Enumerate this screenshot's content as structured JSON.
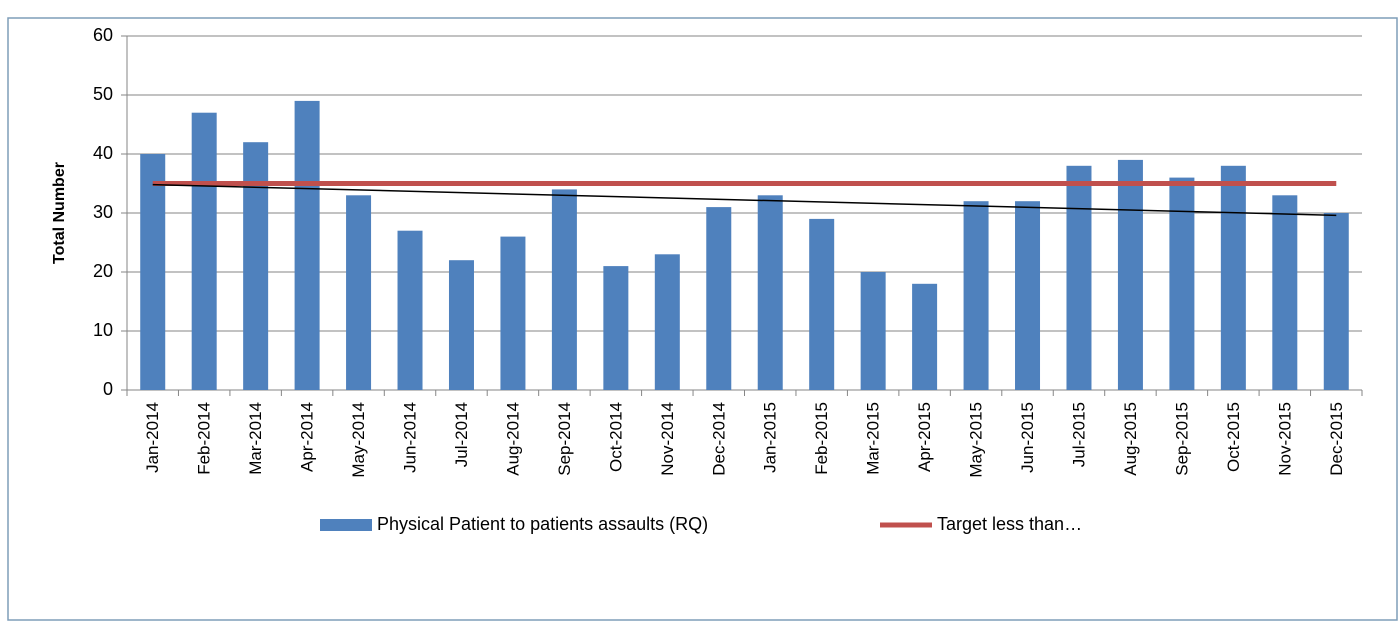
{
  "chart_data": {
    "type": "bar",
    "y_label": "Total Number",
    "categories": [
      "Jan-2014",
      "Feb-2014",
      "Mar-2014",
      "Apr-2014",
      "May-2014",
      "Jun-2014",
      "Jul-2014",
      "Aug-2014",
      "Sep-2014",
      "Oct-2014",
      "Nov-2014",
      "Dec-2014",
      "Jan-2015",
      "Feb-2015",
      "Mar-2015",
      "Apr-2015",
      "May-2015",
      "Jun-2015",
      "Jul-2015",
      "Aug-2015",
      "Sep-2015",
      "Oct-2015",
      "Nov-2015",
      "Dec-2015"
    ],
    "series": [
      {
        "name": "Physical Patient to patients assaults (RQ)",
        "type": "bar",
        "color": "#4f81bd",
        "trendline": "linear",
        "values": [
          40,
          47,
          42,
          49,
          33,
          27,
          22,
          26,
          34,
          21,
          23,
          31,
          33,
          29,
          20,
          18,
          32,
          32,
          38,
          39,
          36,
          38,
          33,
          30
        ]
      },
      {
        "name": "Target less than…",
        "type": "line",
        "color": "#c0504d",
        "values": [
          35,
          35,
          35,
          35,
          35,
          35,
          35,
          35,
          35,
          35,
          35,
          35,
          35,
          35,
          35,
          35,
          35,
          35,
          35,
          35,
          35,
          35,
          35,
          35
        ]
      }
    ],
    "ylim": [
      0,
      60
    ],
    "yticks": [
      0,
      10,
      20,
      30,
      40,
      50,
      60
    ],
    "grid": true,
    "legend": "bottom"
  }
}
